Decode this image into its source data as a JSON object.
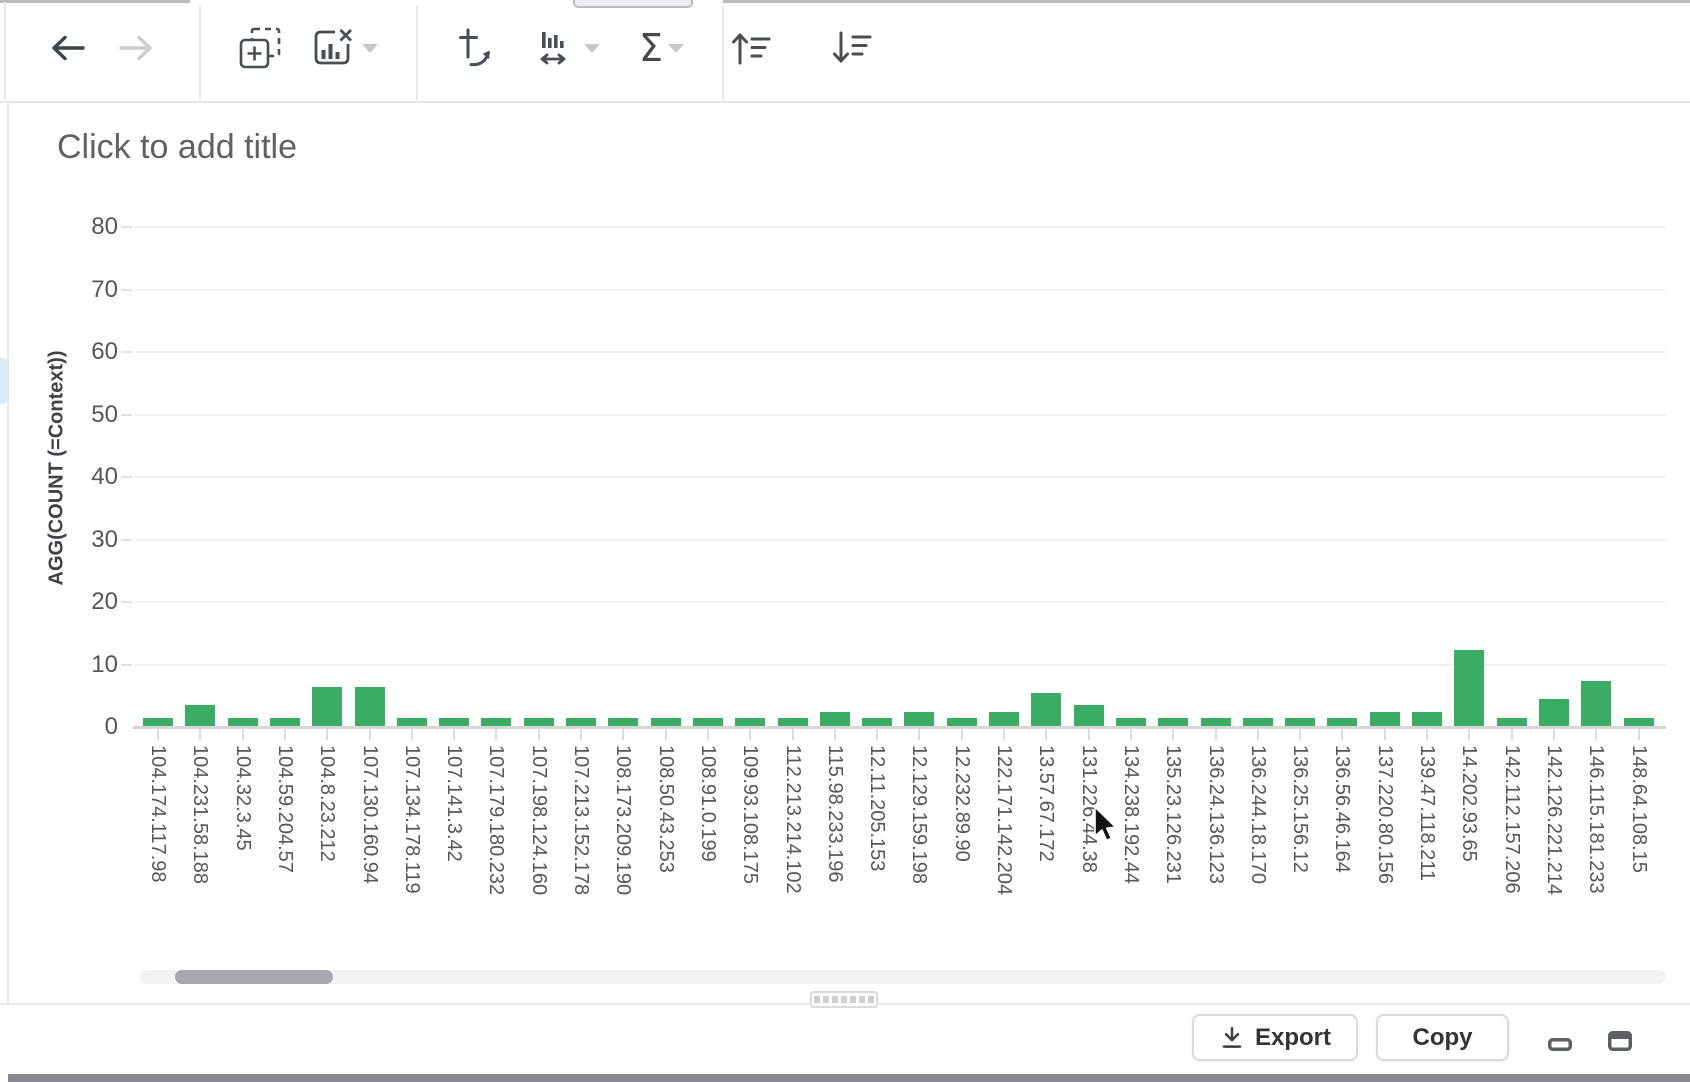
{
  "toolbar": {
    "icons": [
      {
        "name": "undo-arrow",
        "enabled": true
      },
      {
        "name": "redo-arrow",
        "enabled": false
      },
      {
        "name": "add-chart",
        "enabled": true
      },
      {
        "name": "remove-chart",
        "enabled": true,
        "has_caret": true
      },
      {
        "name": "swap-axes",
        "enabled": true
      },
      {
        "name": "bar-width",
        "enabled": true,
        "has_caret": true
      },
      {
        "name": "aggregate-sigma",
        "enabled": true,
        "has_caret": true
      },
      {
        "name": "sort-ascending",
        "enabled": true
      },
      {
        "name": "sort-descending",
        "enabled": true
      }
    ]
  },
  "chart": {
    "title_placeholder": "Click to add title"
  },
  "chart_data": {
    "type": "bar",
    "title": "",
    "xlabel": "",
    "ylabel": "AGG(COUNT (=Context))",
    "ylim": [
      0,
      80
    ],
    "ytick_step": 10,
    "grid": true,
    "legend": false,
    "bar_color": "#3aac64",
    "categories": [
      "104.174.117.98",
      "104.231.58.188",
      "104.32.3.45",
      "104.59.204.57",
      "104.8.23.212",
      "107.130.160.94",
      "107.134.178.119",
      "107.141.3.42",
      "107.179.180.232",
      "107.198.124.160",
      "107.213.152.178",
      "108.173.209.190",
      "108.50.43.253",
      "108.91.0.199",
      "109.93.108.175",
      "112.213.214.102",
      "115.98.233.196",
      "12.11.205.153",
      "12.129.159.198",
      "12.232.89.90",
      "122.171.142.204",
      "13.57.67.172",
      "131.226.44.38",
      "134.238.192.44",
      "135.23.126.231",
      "136.24.136.123",
      "136.244.18.170",
      "136.25.156.12",
      "136.56.46.164",
      "137.220.80.156",
      "139.47.118.211",
      "14.202.93.65",
      "142.112.157.206",
      "142.126.221.214",
      "146.115.181.233",
      "148.64.108.15"
    ],
    "values": [
      1,
      3,
      1,
      1,
      6,
      6,
      1,
      1,
      1,
      1,
      1,
      1,
      1,
      1,
      1,
      1,
      2,
      1,
      2,
      1,
      2,
      5,
      3,
      1,
      1,
      1,
      1,
      1,
      1,
      2,
      2,
      12,
      1,
      4,
      7,
      1
    ]
  },
  "footer": {
    "export_label": "Export",
    "copy_label": "Copy",
    "icons": [
      "download-icon",
      "minimize-window-icon",
      "maximize-window-icon"
    ]
  }
}
